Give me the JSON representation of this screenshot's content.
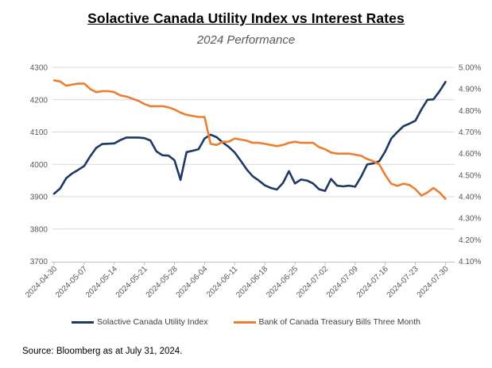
{
  "title": "Solactive Canada Utility Index vs Interest Rates",
  "subtitle": "2024 Performance",
  "source": "Source: Bloomberg as at July 31, 2024.",
  "colors": {
    "index_line": "#1F3864",
    "rates_line": "#ED7D31",
    "grid": "#D9D9D9",
    "axis_line": "#BFBFBF",
    "tick_text": "#595959",
    "legend_text": "#404040"
  },
  "chart_data": {
    "type": "line",
    "title": "Solactive Canada Utility Index vs Interest Rates",
    "subtitle": "2024 Performance",
    "grid": true,
    "legend_position": "bottom",
    "x_tick_labels": [
      "2024-04-30",
      "2024-05-07",
      "2024-05-14",
      "2024-05-21",
      "2024-05-28",
      "2024-06-04",
      "2024-06-11",
      "2024-06-18",
      "2024-06-25",
      "2024-07-02",
      "2024-07-09",
      "2024-07-16",
      "2024-07-23",
      "2024-07-30"
    ],
    "x": [
      "2024-04-30",
      "2024-05-01",
      "2024-05-02",
      "2024-05-03",
      "2024-05-06",
      "2024-05-07",
      "2024-05-08",
      "2024-05-09",
      "2024-05-10",
      "2024-05-13",
      "2024-05-14",
      "2024-05-15",
      "2024-05-16",
      "2024-05-17",
      "2024-05-20",
      "2024-05-21",
      "2024-05-22",
      "2024-05-23",
      "2024-05-24",
      "2024-05-27",
      "2024-05-28",
      "2024-05-29",
      "2024-05-30",
      "2024-05-31",
      "2024-06-03",
      "2024-06-04",
      "2024-06-05",
      "2024-06-06",
      "2024-06-07",
      "2024-06-10",
      "2024-06-11",
      "2024-06-12",
      "2024-06-13",
      "2024-06-14",
      "2024-06-17",
      "2024-06-18",
      "2024-06-19",
      "2024-06-20",
      "2024-06-21",
      "2024-06-24",
      "2024-06-25",
      "2024-06-26",
      "2024-06-27",
      "2024-06-28",
      "2024-07-01",
      "2024-07-02",
      "2024-07-03",
      "2024-07-04",
      "2024-07-05",
      "2024-07-08",
      "2024-07-09",
      "2024-07-10",
      "2024-07-11",
      "2024-07-12",
      "2024-07-15",
      "2024-07-16",
      "2024-07-17",
      "2024-07-18",
      "2024-07-19",
      "2024-07-22",
      "2024-07-23",
      "2024-07-24",
      "2024-07-25",
      "2024-07-26",
      "2024-07-29",
      "2024-07-30"
    ],
    "left_axis": {
      "min": 3700,
      "max": 4300,
      "ticks": [
        4300,
        4200,
        4100,
        4000,
        3900,
        3800,
        3700
      ]
    },
    "right_axis": {
      "min": 4.1,
      "max": 5.0,
      "ticks": [
        "5.00%",
        "4.90%",
        "4.80%",
        "4.70%",
        "4.60%",
        "4.50%",
        "4.40%",
        "4.30%",
        "4.20%",
        "4.10%"
      ]
    },
    "series": [
      {
        "name": "Solactive Canada Utility Index",
        "axis": "left",
        "color": "#1F3864",
        "values": [
          3909,
          3925,
          3957,
          3972,
          3983,
          3995,
          4025,
          4051,
          4063,
          4064,
          4065,
          4075,
          4083,
          4083,
          4083,
          4081,
          4074,
          4040,
          4028,
          4027,
          4013,
          3952,
          4038,
          4042,
          4047,
          4080,
          4092,
          4084,
          4068,
          4054,
          4037,
          4011,
          3984,
          3963,
          3950,
          3935,
          3927,
          3922,
          3942,
          3979,
          3941,
          3953,
          3950,
          3941,
          3923,
          3918,
          3955,
          3934,
          3932,
          3934,
          3931,
          3962,
          4000,
          4003,
          4010,
          4040,
          4080,
          4100,
          4118,
          4126,
          4135,
          4170,
          4200,
          4201,
          4226,
          4255
        ]
      },
      {
        "name": "Bank of Canada Treasury Bills Three Month",
        "axis": "right",
        "color": "#ED7D31",
        "values": [
          4.94,
          4.935,
          4.915,
          4.92,
          4.925,
          4.925,
          4.9,
          4.885,
          4.89,
          4.89,
          4.885,
          4.87,
          4.865,
          4.855,
          4.845,
          4.83,
          4.82,
          4.82,
          4.82,
          4.815,
          4.805,
          4.79,
          4.78,
          4.775,
          4.77,
          4.77,
          4.645,
          4.64,
          4.655,
          4.655,
          4.67,
          4.665,
          4.66,
          4.65,
          4.65,
          4.645,
          4.64,
          4.635,
          4.64,
          4.65,
          4.655,
          4.65,
          4.65,
          4.65,
          4.63,
          4.62,
          4.605,
          4.6,
          4.6,
          4.6,
          4.595,
          4.59,
          4.575,
          4.565,
          4.55,
          4.5,
          4.46,
          4.45,
          4.46,
          4.455,
          4.435,
          4.405,
          4.42,
          4.44,
          4.42,
          4.39
        ]
      }
    ]
  }
}
